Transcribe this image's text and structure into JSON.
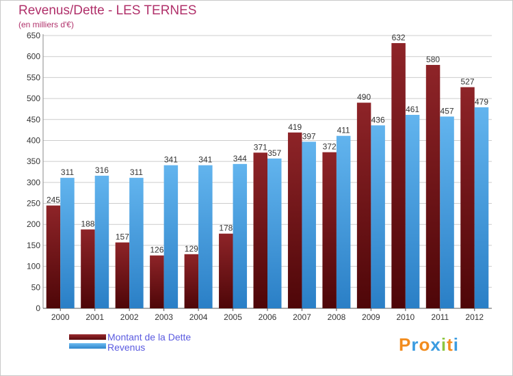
{
  "chart_data": {
    "type": "bar",
    "title": "Revenus/Dette - LES TERNES",
    "subtitle": "(en milliers d'€)",
    "categories": [
      "2000",
      "2001",
      "2002",
      "2003",
      "2004",
      "2005",
      "2006",
      "2007",
      "2008",
      "2009",
      "2010",
      "2011",
      "2012"
    ],
    "series": [
      {
        "name": "Montant de la Dette",
        "values": [
          245,
          188,
          157,
          126,
          129,
          178,
          371,
          419,
          372,
          490,
          632,
          580,
          527
        ],
        "color": "#7a1418"
      },
      {
        "name": "Revenus",
        "values": [
          311,
          316,
          311,
          341,
          341,
          344,
          357,
          397,
          411,
          436,
          461,
          457,
          479
        ],
        "color": "#4aa2e6"
      }
    ],
    "ylim": [
      0,
      650
    ],
    "yticks": [
      0,
      50,
      100,
      150,
      200,
      250,
      300,
      350,
      400,
      450,
      500,
      550,
      600,
      650
    ],
    "grid": true,
    "legend_position": "bottom-left"
  },
  "logo": {
    "text": [
      "P",
      "r",
      "o",
      "x",
      "i",
      "t",
      "i"
    ],
    "colors": [
      "#f28c1e",
      "#3a9be0",
      "#f28c1e",
      "#3a9be0",
      "#8cc63f",
      "#f28c1e",
      "#3a9be0"
    ]
  }
}
